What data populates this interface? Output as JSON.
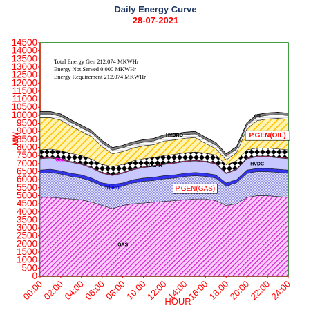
{
  "chart_data": {
    "type": "area",
    "title": "Daily Energy Curve",
    "subtitle": "28-07-2021",
    "xlabel": "HOUR",
    "ylabel": "MW",
    "ylim": [
      0,
      14500
    ],
    "ytick_step": 500,
    "x": [
      "0:00",
      "1:00",
      "2:00",
      "3:00",
      "4:00",
      "5:00",
      "6:00",
      "7:00",
      "8:00",
      "9:00",
      "10:00",
      "11:00",
      "12:00",
      "13:00",
      "14:00",
      "15:00",
      "16:00",
      "17:00",
      "18:00",
      "19:00",
      "20:00",
      "21:00",
      "22:00",
      "23:00",
      "24:00"
    ],
    "xtick_labels": [
      "00:00",
      "02:00",
      "04:00",
      "06:00",
      "08:00",
      "10:00",
      "12:00",
      "14:00",
      "16:00",
      "18:00",
      "20:00",
      "22:00",
      "24:00"
    ],
    "series": [
      {
        "name": "GAS",
        "color": "#cc33cc",
        "values": [
          4900,
          4900,
          4850,
          4800,
          4750,
          4600,
          4400,
          4200,
          4400,
          4500,
          4550,
          4600,
          4650,
          4700,
          4750,
          4800,
          4800,
          4700,
          4400,
          4500,
          4900,
          5000,
          5000,
          4950,
          4900
        ]
      },
      {
        "name": "P.GEN(GAS)",
        "color": "#3333cc",
        "values": [
          1500,
          1550,
          1500,
          1400,
          1350,
          1300,
          1200,
          1300,
          1200,
          1300,
          1350,
          1350,
          1400,
          1400,
          1450,
          1450,
          1400,
          1400,
          1200,
          1300,
          1500,
          1500,
          1500,
          1500,
          1500
        ]
      },
      {
        "name": "Tripura",
        "color": "#3333ee",
        "values": [
          200,
          200,
          200,
          200,
          200,
          200,
          200,
          200,
          200,
          200,
          200,
          200,
          200,
          200,
          200,
          200,
          200,
          200,
          200,
          200,
          200,
          200,
          200,
          200,
          200
        ]
      },
      {
        "name": "HVDC",
        "color": "#6666ff",
        "values": [
          700,
          700,
          700,
          680,
          650,
          620,
          600,
          560,
          600,
          620,
          650,
          680,
          700,
          720,
          720,
          720,
          700,
          680,
          580,
          620,
          700,
          720,
          720,
          710,
          700
        ]
      },
      {
        "name": "Coal",
        "color": "#ff3399",
        "values": [
          50,
          50,
          50,
          50,
          50,
          50,
          50,
          50,
          50,
          50,
          50,
          50,
          50,
          50,
          50,
          50,
          50,
          50,
          50,
          50,
          50,
          50,
          50,
          50,
          50
        ]
      },
      {
        "name": "SOLAR",
        "color": "#000000",
        "values": [
          500,
          500,
          500,
          500,
          500,
          500,
          500,
          500,
          500,
          500,
          500,
          500,
          500,
          500,
          500,
          500,
          500,
          500,
          500,
          500,
          500,
          500,
          500,
          500,
          500
        ]
      },
      {
        "name": "P.GEN(OIL)",
        "color": "#ffcc00",
        "values": [
          2000,
          1950,
          1900,
          1700,
          1500,
          1400,
          1100,
          800,
          800,
          800,
          800,
          800,
          900,
          900,
          900,
          900,
          600,
          400,
          300,
          500,
          1300,
          1700,
          1800,
          1900,
          1900
        ]
      },
      {
        "name": "HYDRO",
        "color": "#ffffff",
        "values": [
          230,
          230,
          230,
          230,
          230,
          230,
          230,
          230,
          230,
          230,
          230,
          230,
          230,
          230,
          230,
          230,
          230,
          230,
          230,
          230,
          230,
          230,
          230,
          230,
          230
        ]
      },
      {
        "name": "Oil",
        "color": "#808080",
        "values": [
          150,
          150,
          150,
          150,
          150,
          150,
          150,
          150,
          150,
          150,
          150,
          150,
          150,
          150,
          150,
          150,
          150,
          150,
          150,
          150,
          150,
          150,
          150,
          150,
          150
        ]
      }
    ],
    "annotations": [
      "Total Energy Gen 212.074 MKWHr",
      "Energy Not Served   0.000 MKWHr",
      "Energy Requirement      212.074 MKWHr"
    ]
  }
}
